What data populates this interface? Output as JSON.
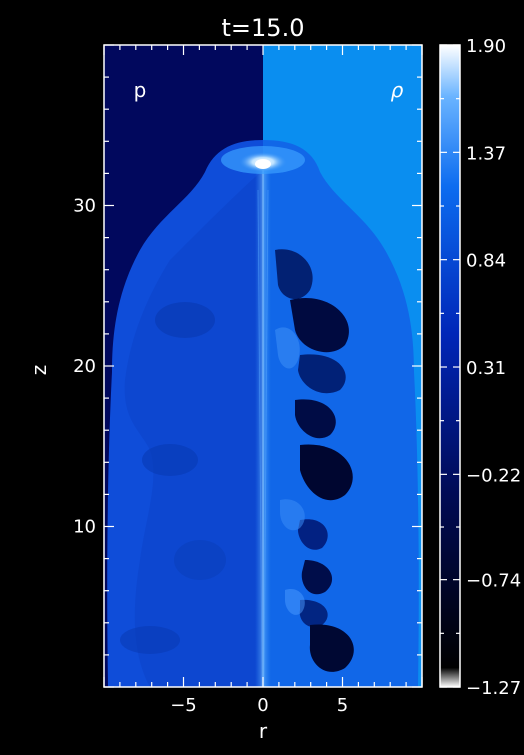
{
  "title": "t=15.0",
  "panel_labels": {
    "left": "p",
    "right": "ρ"
  },
  "axes": {
    "xlabel": "r",
    "ylabel": "z",
    "xlim": [
      -10,
      10
    ],
    "ylim": [
      0,
      40
    ],
    "x_ticks": [
      "−5",
      "0",
      "5"
    ],
    "x_tick_values": [
      -5,
      0,
      5
    ],
    "y_ticks": [
      "10",
      "20",
      "30"
    ],
    "y_tick_values": [
      10,
      20,
      30
    ]
  },
  "colorbar": {
    "ticks": [
      "1.90",
      "1.37",
      "0.84",
      "0.31",
      "−0.22",
      "−0.74",
      "−1.27"
    ],
    "tick_values": [
      1.9,
      1.37,
      0.84,
      0.31,
      -0.22,
      -0.74,
      -1.27
    ],
    "range": [
      -1.27,
      1.9
    ],
    "colors": {
      "low": "#ffffff",
      "mid_low": "#000033",
      "mid": "#001a8c",
      "mid_high": "#0a6cf2",
      "high": "#ffffff"
    }
  },
  "colors": {
    "background": "#000000",
    "left_panel_bg": "#01085d",
    "right_panel_bg": "#0a8ef0",
    "cocoon_left": "#0f4dd9",
    "cocoon_right": "#1167e8",
    "frame": "#ffffff"
  }
}
